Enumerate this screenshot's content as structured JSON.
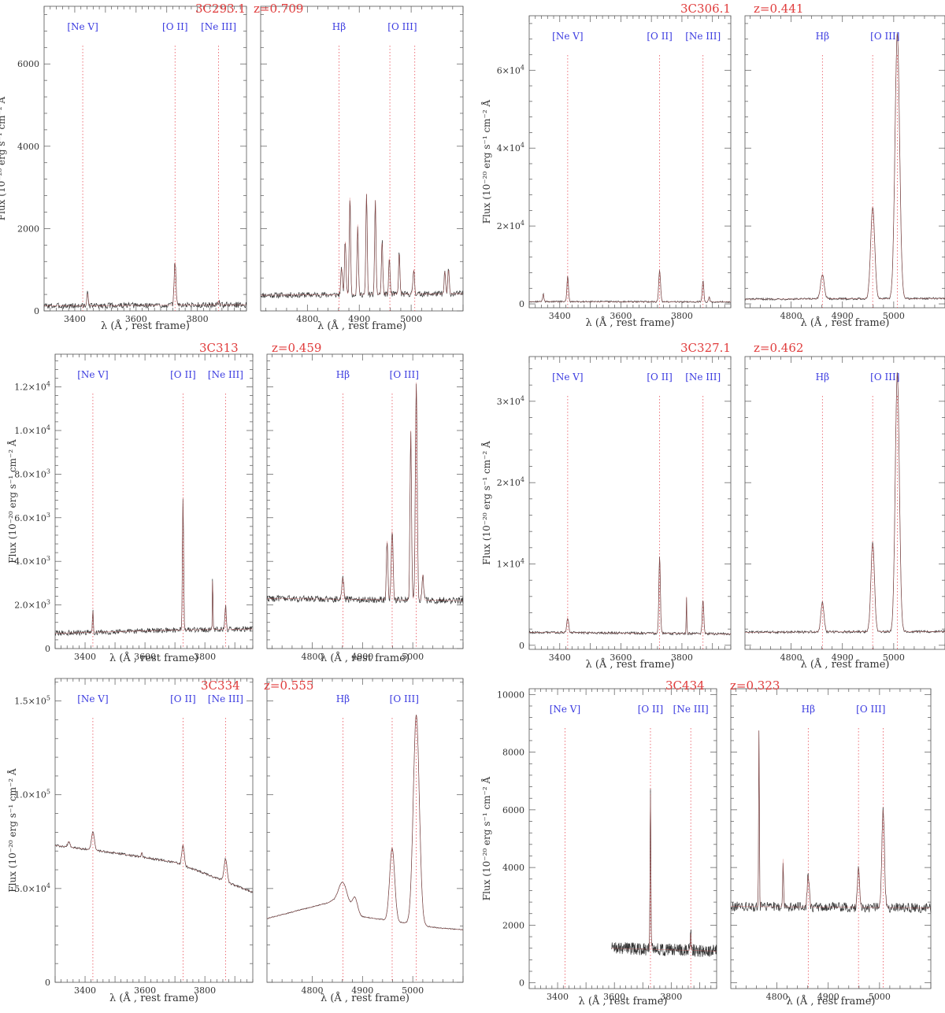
{
  "figure": {
    "xlabel": "λ (Å , rest frame)",
    "ylabel": "Flux (10⁻²⁰ erg s⁻¹ cm⁻² Å",
    "colors": {
      "spectrum": "#333333",
      "fit": "#d25a5a",
      "marker": "#e8505a",
      "label": "#3b3be0",
      "title": "#e03c3c"
    }
  },
  "chart_data": [
    {
      "type": "line",
      "object": "3C293.1",
      "redshift": "z=0.709",
      "y_format": "plain",
      "ylim": [
        0,
        7400
      ],
      "yticks": [
        0,
        2000,
        4000,
        6000
      ],
      "ytick_labels": [
        "0",
        "2000",
        "4000",
        "6000"
      ],
      "left": {
        "xlim": [
          3300,
          3960
        ],
        "xticks": [
          3400,
          3600,
          3800
        ],
        "xtick_labels": [
          "3400",
          "3600",
          "3800"
        ],
        "continuum": [
          [
            3300,
            120
          ],
          [
            3960,
            150
          ]
        ],
        "noise": 70,
        "lines": [
          {
            "x": 3442,
            "h": 300,
            "w": 2.5
          },
          {
            "x": 3727,
            "h": 1050,
            "w": 3
          },
          {
            "x": 3869,
            "h": 80,
            "w": 3
          }
        ]
      },
      "right": {
        "xlim": [
          4710,
          5100
        ],
        "xticks": [
          4800,
          4900,
          5000
        ],
        "xtick_labels": [
          "4800",
          "4900",
          "5000"
        ],
        "continuum": [
          [
            4710,
            380
          ],
          [
            5100,
            420
          ]
        ],
        "noise": 70,
        "lines": [
          {
            "x": 4866,
            "h": 650,
            "w": 1.5
          },
          {
            "x": 4873,
            "h": 1300,
            "w": 1.5
          },
          {
            "x": 4882,
            "h": 2400,
            "w": 1.3
          },
          {
            "x": 4897,
            "h": 1700,
            "w": 1.3
          },
          {
            "x": 4914,
            "h": 2450,
            "w": 1.3
          },
          {
            "x": 4931,
            "h": 2300,
            "w": 1.3
          },
          {
            "x": 4944,
            "h": 1300,
            "w": 1.3
          },
          {
            "x": 4958,
            "h": 900,
            "w": 1.3
          },
          {
            "x": 4977,
            "h": 1000,
            "w": 1.3
          },
          {
            "x": 5005,
            "h": 600,
            "w": 1.5
          },
          {
            "x": 5065,
            "h": 550,
            "w": 1.3
          },
          {
            "x": 5072,
            "h": 600,
            "w": 1.3
          }
        ]
      }
    },
    {
      "type": "line",
      "object": "3C306.1",
      "redshift": "z=0.441",
      "y_format": "sci",
      "ylim": [
        -1000,
        74000
      ],
      "yticks": [
        0,
        20000,
        40000,
        60000
      ],
      "ytick_labels": [
        "0",
        "2×10",
        "4×10",
        "6×10"
      ],
      "ytick_exp": "4",
      "left": {
        "xlim": [
          3300,
          3960
        ],
        "xticks": [
          3400,
          3600,
          3800
        ],
        "xtick_labels": [
          "3400",
          "3600",
          "3800"
        ],
        "continuum": [
          [
            3300,
            600
          ],
          [
            3960,
            500
          ]
        ],
        "noise": 200,
        "lines": [
          {
            "x": 3346,
            "h": 2000,
            "w": 2
          },
          {
            "x": 3426,
            "h": 6500,
            "w": 2.5
          },
          {
            "x": 3727,
            "h": 8000,
            "w": 3
          },
          {
            "x": 3869,
            "h": 5500,
            "w": 2.5
          },
          {
            "x": 3889,
            "h": 1300,
            "w": 2
          }
        ]
      },
      "right": {
        "xlim": [
          4710,
          5100
        ],
        "xticks": [
          4800,
          4900,
          5000
        ],
        "xtick_labels": [
          "4800",
          "4900",
          "5000"
        ],
        "continuum": [
          [
            4710,
            1200
          ],
          [
            5100,
            1400
          ]
        ],
        "noise": 250,
        "lines": [
          {
            "x": 4861,
            "h": 6300,
            "w": 3.5
          },
          {
            "x": 4959,
            "h": 23500,
            "w": 4
          },
          {
            "x": 5007,
            "h": 68000,
            "w": 4.5
          }
        ]
      }
    },
    {
      "type": "line",
      "object": "3C313",
      "redshift": "z=0.459",
      "y_format": "sci",
      "ylim": [
        0,
        13500
      ],
      "yticks": [
        0,
        2000,
        4000,
        6000,
        8000,
        10000,
        12000
      ],
      "ytick_labels": [
        "0",
        "2.0×10",
        "4.0×10",
        "6.0×10",
        "8.0×10",
        "1.0×10",
        "1.2×10"
      ],
      "ytick_exps": [
        "",
        "3",
        "3",
        "3",
        "3",
        "4",
        "4"
      ],
      "left": {
        "xlim": [
          3300,
          3960
        ],
        "xticks": [
          3400,
          3600,
          3800
        ],
        "xtick_labels": [
          "3400",
          "3600",
          "3800"
        ],
        "continuum": [
          [
            3300,
            700
          ],
          [
            3700,
            850
          ],
          [
            3960,
            900
          ]
        ],
        "noise": 120,
        "lines": [
          {
            "x": 3426,
            "h": 1000,
            "w": 1.5
          },
          {
            "x": 3727,
            "h": 6000,
            "w": 2
          },
          {
            "x": 3826,
            "h": 2700,
            "w": 1
          },
          {
            "x": 3869,
            "h": 1100,
            "w": 2
          }
        ]
      },
      "right": {
        "xlim": [
          4710,
          5100
        ],
        "xticks": [
          4800,
          4900,
          5000
        ],
        "xtick_labels": [
          "4800",
          "4900",
          "5000"
        ],
        "continuum": [
          [
            4710,
            2300
          ],
          [
            5100,
            2200
          ]
        ],
        "noise": 150,
        "lines": [
          {
            "x": 4861,
            "h": 1000,
            "w": 2
          },
          {
            "x": 4949,
            "h": 2700,
            "w": 1.5
          },
          {
            "x": 4959,
            "h": 3200,
            "w": 1.8
          },
          {
            "x": 4996,
            "h": 7800,
            "w": 1.5
          },
          {
            "x": 5007,
            "h": 10000,
            "w": 1.8
          },
          {
            "x": 5020,
            "h": 1200,
            "w": 1.5
          }
        ]
      }
    },
    {
      "type": "line",
      "object": "3C327.1",
      "redshift": "z=0.462",
      "y_format": "sci",
      "ylim": [
        -500,
        35500
      ],
      "yticks": [
        0,
        10000,
        20000,
        30000
      ],
      "ytick_labels": [
        "0",
        "1×10",
        "2×10",
        "3×10"
      ],
      "ytick_exp": "4",
      "left": {
        "xlim": [
          3300,
          3960
        ],
        "xticks": [
          3400,
          3600,
          3800
        ],
        "xtick_labels": [
          "3400",
          "3600",
          "3800"
        ],
        "continuum": [
          [
            3300,
            1600
          ],
          [
            3960,
            1400
          ]
        ],
        "noise": 150,
        "lines": [
          {
            "x": 3426,
            "h": 1800,
            "w": 3
          },
          {
            "x": 3727,
            "h": 9500,
            "w": 2.5
          },
          {
            "x": 3815,
            "h": 4600,
            "w": 1
          },
          {
            "x": 3869,
            "h": 4200,
            "w": 2.5
          }
        ]
      },
      "right": {
        "xlim": [
          4710,
          5100
        ],
        "xticks": [
          4800,
          4900,
          5000
        ],
        "xtick_labels": [
          "4800",
          "4900",
          "5000"
        ],
        "continuum": [
          [
            4710,
            1600
          ],
          [
            5100,
            1700
          ]
        ],
        "noise": 150,
        "lines": [
          {
            "x": 4861,
            "h": 3600,
            "w": 3
          },
          {
            "x": 4959,
            "h": 10900,
            "w": 3.5
          },
          {
            "x": 5007,
            "h": 31800,
            "w": 4
          }
        ]
      }
    },
    {
      "type": "line",
      "object": "3C334",
      "redshift": "z=0.555",
      "y_format": "sci",
      "ylim": [
        0,
        162000
      ],
      "yticks": [
        50000,
        100000,
        150000
      ],
      "ytick_labels": [
        "5.0×10",
        "1.0×10",
        "1.5×10"
      ],
      "ytick_exp": "5",
      "y_extra_tick": "0",
      "ytick_exps": [
        "4",
        "5",
        "5"
      ],
      "left": {
        "xlim": [
          3300,
          3960
        ],
        "xticks": [
          3400,
          3600,
          3800
        ],
        "xtick_labels": [
          "3400",
          "3600",
          "3800"
        ],
        "continuum": [
          [
            3300,
            73000
          ],
          [
            3500,
            69000
          ],
          [
            3700,
            64000
          ],
          [
            3800,
            58000
          ],
          [
            3960,
            48000
          ]
        ],
        "noise": 600,
        "lines": [
          {
            "x": 3346,
            "h": 3000,
            "w": 4
          },
          {
            "x": 3426,
            "h": 9500,
            "w": 5
          },
          {
            "x": 3589,
            "h": 2500,
            "w": 2
          },
          {
            "x": 3727,
            "h": 11000,
            "w": 4
          },
          {
            "x": 3869,
            "h": 12000,
            "w": 5
          }
        ]
      },
      "right": {
        "xlim": [
          4710,
          5100
        ],
        "xticks": [
          4800,
          4900,
          5000
        ],
        "xtick_labels": [
          "4800",
          "4900",
          "5000"
        ],
        "continuum": [
          [
            4710,
            34000
          ],
          [
            4840,
            43000
          ],
          [
            4900,
            35000
          ],
          [
            4950,
            33000
          ],
          [
            5050,
            29000
          ],
          [
            5100,
            28000
          ]
        ],
        "noise": 250,
        "lines": [
          {
            "x": 4861,
            "h": 13000,
            "w": 9
          },
          {
            "x": 4885,
            "h": 8000,
            "w": 5
          },
          {
            "x": 4959,
            "h": 39000,
            "w": 5
          },
          {
            "x": 5007,
            "h": 112000,
            "w": 6
          }
        ]
      }
    },
    {
      "type": "line",
      "object": "3C434",
      "redshift": "z=0.323",
      "y_format": "plain",
      "ylim": [
        -200,
        10200
      ],
      "yticks": [
        0,
        2000,
        4000,
        6000,
        8000,
        10000
      ],
      "ytick_labels": [
        "0",
        "2000",
        "4000",
        "6000",
        "8000",
        "10000"
      ],
      "left": {
        "xlim": [
          3300,
          3960
        ],
        "xticks": [
          3400,
          3600,
          3800
        ],
        "xtick_labels": [
          "3400",
          "3600",
          "3800"
        ],
        "start": 3590,
        "continuum": [
          [
            3590,
            1200
          ],
          [
            3960,
            1100
          ]
        ],
        "noise": 220,
        "lines": [
          {
            "x": 3727,
            "h": 5400,
            "w": 1.5
          },
          {
            "x": 3869,
            "h": 600,
            "w": 1.5
          }
        ]
      },
      "right": {
        "xlim": [
          4710,
          5100
        ],
        "xticks": [
          4800,
          4900,
          5000
        ],
        "xtick_labels": [
          "4800",
          "4900",
          "5000"
        ],
        "continuum": [
          [
            4710,
            2650
          ],
          [
            5100,
            2600
          ]
        ],
        "noise": 170,
        "lines": [
          {
            "x": 4765,
            "h": 6500,
            "w": 0.7
          },
          {
            "x": 4812,
            "h": 1700,
            "w": 0.8
          },
          {
            "x": 4861,
            "h": 1100,
            "w": 2
          },
          {
            "x": 4959,
            "h": 1400,
            "w": 2
          },
          {
            "x": 5007,
            "h": 3400,
            "w": 2.5
          }
        ]
      }
    }
  ],
  "line_markers": {
    "left": [
      {
        "label": "[Ne V]",
        "x": 3426
      },
      {
        "label": "[O II]",
        "x": 3727
      },
      {
        "label": "[Ne III]",
        "x": 3869
      }
    ],
    "right": [
      {
        "label": "Hβ",
        "x": 4861
      },
      {
        "label": "[O III]",
        "x": 4959,
        "label_x": 4983
      },
      {
        "label": "",
        "x": 5007
      }
    ]
  }
}
